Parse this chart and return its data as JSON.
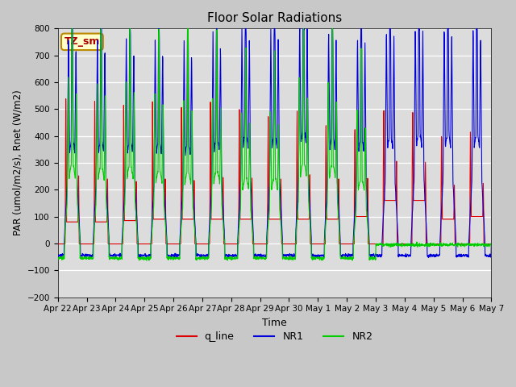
{
  "title": "Floor Solar Radiations",
  "xlabel": "Time",
  "ylabel": "PAR (umol/m2/s), Rnet (W/m2)",
  "ylim": [
    -200,
    800
  ],
  "yticks": [
    -200,
    -100,
    0,
    100,
    200,
    300,
    400,
    500,
    600,
    700,
    800
  ],
  "background_color": "#dcdcdc",
  "fig_bg_color": "#c8c8c8",
  "line_colors": {
    "q_line": "#dd0000",
    "NR1": "#0000dd",
    "NR2": "#00cc00"
  },
  "annotation_text": "TZ_sm",
  "annotation_color": "#aa0000",
  "annotation_bg": "#ffffcc",
  "n_days": 15,
  "legend_labels": [
    "q_line",
    "NR1",
    "NR2"
  ],
  "xtick_labels": [
    "Apr 22",
    "Apr 23",
    "Apr 24",
    "Apr 25",
    "Apr 26",
    "Apr 27",
    "Apr 28",
    "Apr 29",
    "Apr 30",
    "May 1",
    "May 2",
    "May 3",
    "May 4",
    "May 5",
    "May 6",
    "May 7"
  ]
}
